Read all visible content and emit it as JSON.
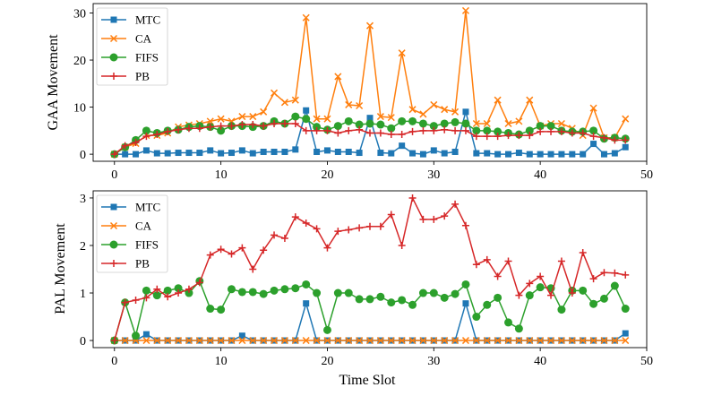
{
  "chart_data": [
    {
      "type": "line",
      "ylabel": "GAA Movement",
      "xlabel": "",
      "xlim": [
        -2,
        50
      ],
      "ylim": [
        -1.5,
        32
      ],
      "xticks": [
        0,
        10,
        20,
        30,
        40,
        50
      ],
      "yticks": [
        0,
        10,
        20,
        30
      ],
      "legend_position": "top-left",
      "x": [
        0,
        1,
        2,
        3,
        4,
        5,
        6,
        7,
        8,
        9,
        10,
        11,
        12,
        13,
        14,
        15,
        16,
        17,
        18,
        19,
        20,
        21,
        22,
        23,
        24,
        25,
        26,
        27,
        28,
        29,
        30,
        31,
        32,
        33,
        34,
        35,
        36,
        37,
        38,
        39,
        40,
        41,
        42,
        43,
        44,
        45,
        46,
        47,
        48
      ],
      "series": [
        {
          "name": "MTC",
          "color": "#1f77b4",
          "marker": "square",
          "values": [
            0,
            0,
            0,
            0.8,
            0.2,
            0.2,
            0.3,
            0.3,
            0.3,
            0.8,
            0.2,
            0.3,
            0.8,
            0.2,
            0.5,
            0.5,
            0.5,
            1,
            9.3,
            0.5,
            0.8,
            0.5,
            0.5,
            0.3,
            7.7,
            0.3,
            0.2,
            1.8,
            0.2,
            0,
            0.8,
            0.2,
            0.5,
            9,
            0.2,
            0.2,
            0,
            0,
            0.3,
            0,
            0,
            0,
            0,
            0,
            0,
            2.2,
            0,
            0.2,
            1.5
          ]
        },
        {
          "name": "CA",
          "color": "#ff7f0e",
          "marker": "x",
          "values": [
            0,
            1.5,
            2.3,
            4,
            4,
            4.5,
            5.8,
            6.2,
            6.5,
            7,
            7.5,
            7,
            8,
            8,
            9,
            13,
            11,
            11.5,
            29,
            7.5,
            7.5,
            16.5,
            10.5,
            10.3,
            27.3,
            8,
            7.8,
            21.5,
            9.5,
            8.5,
            10.5,
            9.5,
            9,
            30.5,
            6.5,
            6.5,
            11.5,
            6.5,
            7,
            11.5,
            6,
            6.5,
            6.5,
            5.5,
            4,
            9.8,
            3.5,
            3.5,
            7.5
          ]
        },
        {
          "name": "FIFS",
          "color": "#2ca02c",
          "marker": "circle",
          "values": [
            0,
            1.5,
            3,
            5,
            4.5,
            5,
            5.2,
            5.8,
            6,
            5.8,
            5,
            6,
            6,
            5.8,
            6,
            7,
            6.5,
            8,
            7.5,
            5.8,
            5.2,
            6,
            7,
            6.3,
            6.5,
            6.3,
            5.5,
            7,
            7,
            6.5,
            6,
            6.5,
            6.8,
            6.5,
            5,
            5,
            4.8,
            4.5,
            4.2,
            5,
            6,
            6,
            5,
            4.8,
            4.8,
            5,
            3.3,
            3.5,
            3.3
          ]
        },
        {
          "name": "PB",
          "color": "#d62728",
          "marker": "plus",
          "values": [
            0,
            1.8,
            2.5,
            3.8,
            4.2,
            4.8,
            5.2,
            5.5,
            5.5,
            5.8,
            6,
            6,
            6.3,
            6.3,
            6,
            6.5,
            6.5,
            6.5,
            5,
            5,
            5,
            4.5,
            5,
            5.2,
            4.5,
            4.5,
            4.2,
            4.2,
            4.8,
            5,
            5,
            5.2,
            5,
            5,
            3.8,
            3.8,
            3.8,
            4,
            4,
            4,
            4.8,
            4.8,
            4.8,
            4.5,
            4.5,
            3.8,
            3.5,
            3,
            3
          ]
        }
      ]
    },
    {
      "type": "line",
      "ylabel": "PAL Movement",
      "xlabel": "Time Slot",
      "xlim": [
        -2,
        50
      ],
      "ylim": [
        -0.15,
        3.15
      ],
      "xticks": [
        0,
        10,
        20,
        30,
        40,
        50
      ],
      "yticks": [
        0,
        1,
        2,
        3
      ],
      "legend_position": "top-left",
      "x": [
        0,
        1,
        2,
        3,
        4,
        5,
        6,
        7,
        8,
        9,
        10,
        11,
        12,
        13,
        14,
        15,
        16,
        17,
        18,
        19,
        20,
        21,
        22,
        23,
        24,
        25,
        26,
        27,
        28,
        29,
        30,
        31,
        32,
        33,
        34,
        35,
        36,
        37,
        38,
        39,
        40,
        41,
        42,
        43,
        44,
        45,
        46,
        47,
        48
      ],
      "series": [
        {
          "name": "MTC",
          "color": "#1f77b4",
          "marker": "square",
          "values": [
            0,
            0,
            0,
            0.13,
            0,
            0,
            0,
            0,
            0,
            0,
            0,
            0,
            0.1,
            0,
            0,
            0,
            0,
            0,
            0.78,
            0,
            0,
            0,
            0,
            0,
            0,
            0,
            0,
            0,
            0,
            0,
            0,
            0,
            0,
            0.78,
            0,
            0,
            0,
            0,
            0,
            0,
            0,
            0,
            0,
            0,
            0,
            0,
            0,
            0,
            0.15
          ]
        },
        {
          "name": "CA",
          "color": "#ff7f0e",
          "marker": "x",
          "values": [
            0,
            0,
            0,
            0,
            0,
            0,
            0,
            0,
            0,
            0,
            0,
            0,
            0,
            0,
            0,
            0,
            0,
            0,
            0,
            0,
            0,
            0,
            0,
            0,
            0,
            0,
            0,
            0,
            0,
            0,
            0,
            0,
            0,
            0,
            0,
            0,
            0,
            0,
            0,
            0,
            0,
            0,
            0,
            0,
            0,
            0,
            0,
            0,
            0
          ]
        },
        {
          "name": "FIFS",
          "color": "#2ca02c",
          "marker": "circle",
          "values": [
            0,
            0.8,
            0.1,
            1.05,
            0.95,
            1.05,
            1.1,
            1,
            1.25,
            0.67,
            0.65,
            1.08,
            1.02,
            1.02,
            0.98,
            1.05,
            1.08,
            1.1,
            1.18,
            1,
            0.22,
            1,
            1,
            0.87,
            0.87,
            0.92,
            0.8,
            0.85,
            0.75,
            1,
            1,
            0.9,
            0.98,
            1.18,
            0.5,
            0.75,
            0.9,
            0.38,
            0.25,
            0.95,
            1.12,
            1.1,
            0.65,
            1.05,
            1.05,
            0.77,
            0.88,
            1.15,
            0.67
          ]
        },
        {
          "name": "PB",
          "color": "#d62728",
          "marker": "plus",
          "values": [
            0,
            0.8,
            0.85,
            0.9,
            1.08,
            0.92,
            1,
            1.08,
            1.22,
            1.8,
            1.92,
            1.82,
            1.95,
            1.5,
            1.9,
            2.22,
            2.15,
            2.6,
            2.47,
            2.35,
            1.95,
            2.3,
            2.33,
            2.37,
            2.4,
            2.4,
            2.65,
            2,
            3,
            2.55,
            2.55,
            2.62,
            2.87,
            2.42,
            1.6,
            1.7,
            1.35,
            1.67,
            0.95,
            1.2,
            1.35,
            0.95,
            1.67,
            1,
            1.85,
            1.3,
            1.43,
            1.42,
            1.38
          ]
        }
      ]
    }
  ]
}
